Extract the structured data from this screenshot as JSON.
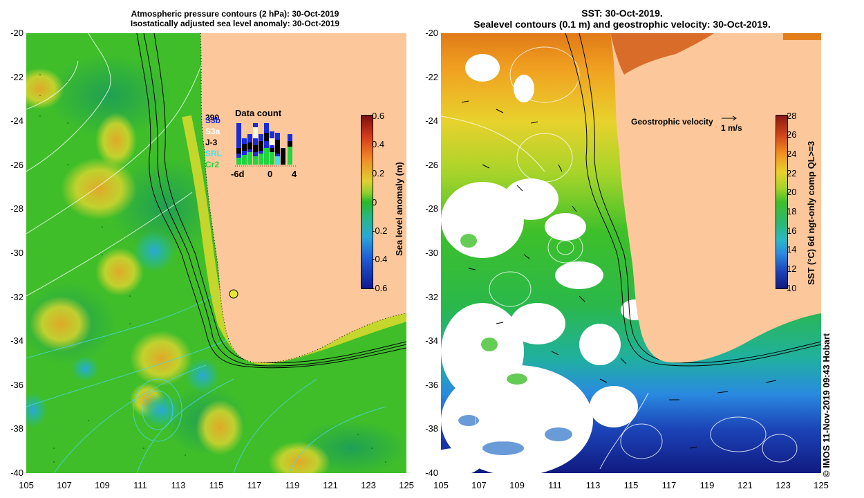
{
  "left_panel": {
    "title_line1": "Atmospheric pressure contours (2 hPa): 30-Oct-2019",
    "title_line2": "Isostatically adjusted sea level anomaly: 30-Oct-2019",
    "colorbar": {
      "label": "Sea level anomaly (m)",
      "ticks": [
        "0.6",
        "0.4",
        "0.2",
        "0",
        "-0.2",
        "-0.4",
        "-0.6"
      ],
      "min": -0.6,
      "max": 0.6
    },
    "data_count": {
      "title": "Data count",
      "satellites": [
        "S3b",
        "S3a",
        "J-3",
        "SRL",
        "Cr2"
      ],
      "satellite_colors": [
        "#1a2bd9",
        "#ffffff",
        "#000000",
        "#39e6f0",
        "#22d440"
      ],
      "top_label": "390",
      "x_ticks": [
        "-6d",
        "0",
        "4"
      ]
    }
  },
  "right_panel": {
    "title_line1": "SST: 30-Oct-2019.",
    "title_line2": "Sealevel contours (0.1 m) and geostrophic velocity: 30-Oct-2019.",
    "velocity_legend": "Geostrophic velocity",
    "velocity_scale": "1 m/s",
    "colorbar": {
      "label": "SST (°C) 6d ngt-only comp QL>=3",
      "ticks": [
        "28",
        "26",
        "24",
        "22",
        "20",
        "18",
        "16",
        "14",
        "12",
        "10"
      ],
      "min": 10,
      "max": 28
    }
  },
  "axes": {
    "lat_ticks": [
      "-20",
      "-22",
      "-24",
      "-26",
      "-28",
      "-30",
      "-32",
      "-34",
      "-36",
      "-38",
      "-40"
    ],
    "lon_ticks": [
      "105",
      "107",
      "109",
      "111",
      "113",
      "115",
      "117",
      "119",
      "121",
      "123",
      "125"
    ]
  },
  "credit": "© IMOS 11-Nov-2019 09:43 Hobart",
  "colors": {
    "land": "#fcc89b",
    "ocean_green": "#3fbe2a",
    "anomaly_yellow": "#d9d02a",
    "sst_orange": "#e8921c",
    "sst_blue": "#1b3fb4"
  }
}
